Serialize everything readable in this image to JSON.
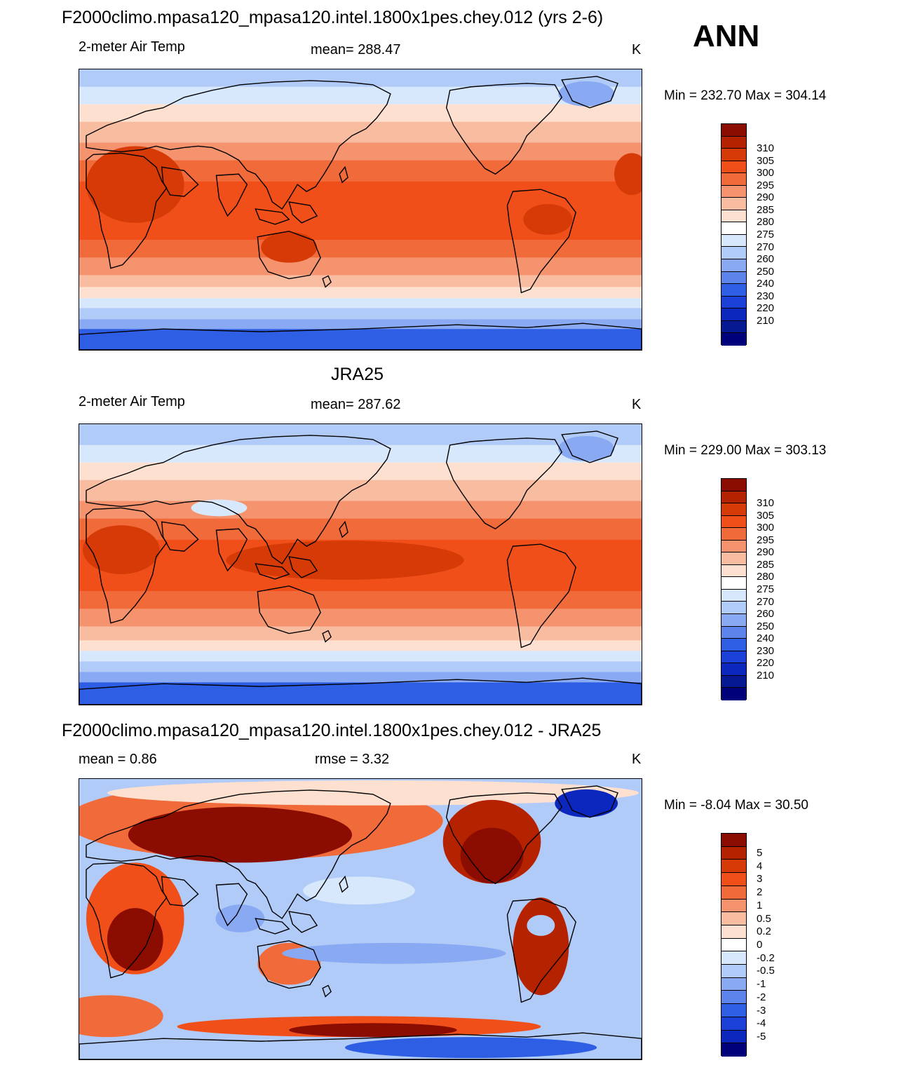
{
  "season": "ANN",
  "panels": [
    {
      "title": "F2000climo.mpasa120_mpasa120.intel.1800x1pes.chey.012 (yrs 2-6)",
      "left": "2-meter Air Temp",
      "center": "mean= 288.47",
      "units": "K",
      "minmax": "Min = 232.70 Max = 304.14",
      "colorbar": {
        "labels": [
          "310",
          "305",
          "300",
          "295",
          "290",
          "285",
          "280",
          "275",
          "270",
          "260",
          "250",
          "240",
          "230",
          "220",
          "210"
        ],
        "colors": [
          "#8b0c00",
          "#b52200",
          "#d63a06",
          "#f04f1a",
          "#f06a3a",
          "#f4936d",
          "#f8bca1",
          "#fde0cf",
          "#ffffff",
          "#d7e8fc",
          "#b1cbf8",
          "#89aaf2",
          "#5c84ea",
          "#2e5ee4",
          "#1a40d8",
          "#0c27bd",
          "#061892",
          "#00007a"
        ]
      },
      "map_style": "model"
    },
    {
      "title": "JRA25",
      "left": "2-meter Air Temp",
      "center": "mean= 287.62",
      "units": "K",
      "minmax": "Min = 229.00 Max = 303.13",
      "colorbar": {
        "labels": [
          "310",
          "305",
          "300",
          "295",
          "290",
          "285",
          "280",
          "275",
          "270",
          "260",
          "250",
          "240",
          "230",
          "220",
          "210"
        ],
        "colors": [
          "#8b0c00",
          "#b52200",
          "#d63a06",
          "#f04f1a",
          "#f06a3a",
          "#f4936d",
          "#f8bca1",
          "#fde0cf",
          "#ffffff",
          "#d7e8fc",
          "#b1cbf8",
          "#89aaf2",
          "#5c84ea",
          "#2e5ee4",
          "#1a40d8",
          "#0c27bd",
          "#061892",
          "#00007a"
        ]
      },
      "map_style": "obs"
    },
    {
      "title": "F2000climo.mpasa120_mpasa120.intel.1800x1pes.chey.012 - JRA25",
      "left": "mean =   0.86",
      "center": "rmse =   3.32",
      "units": "K",
      "minmax": "Min =  -8.04 Max =  30.50",
      "colorbar": {
        "labels": [
          "5",
          "4",
          "3",
          "2",
          "1",
          "0.5",
          "0.2",
          "0",
          "-0.2",
          "-0.5",
          "-1",
          "-2",
          "-3",
          "-4",
          "-5"
        ],
        "colors": [
          "#8b0c00",
          "#b52200",
          "#d63a06",
          "#f04f1a",
          "#f06a3a",
          "#f4936d",
          "#f8bca1",
          "#fde0cf",
          "#ffffff",
          "#d7e8fc",
          "#b1cbf8",
          "#89aaf2",
          "#5c84ea",
          "#2e5ee4",
          "#1a40d8",
          "#0c27bd",
          "#00007a"
        ]
      },
      "map_style": "diff"
    }
  ]
}
